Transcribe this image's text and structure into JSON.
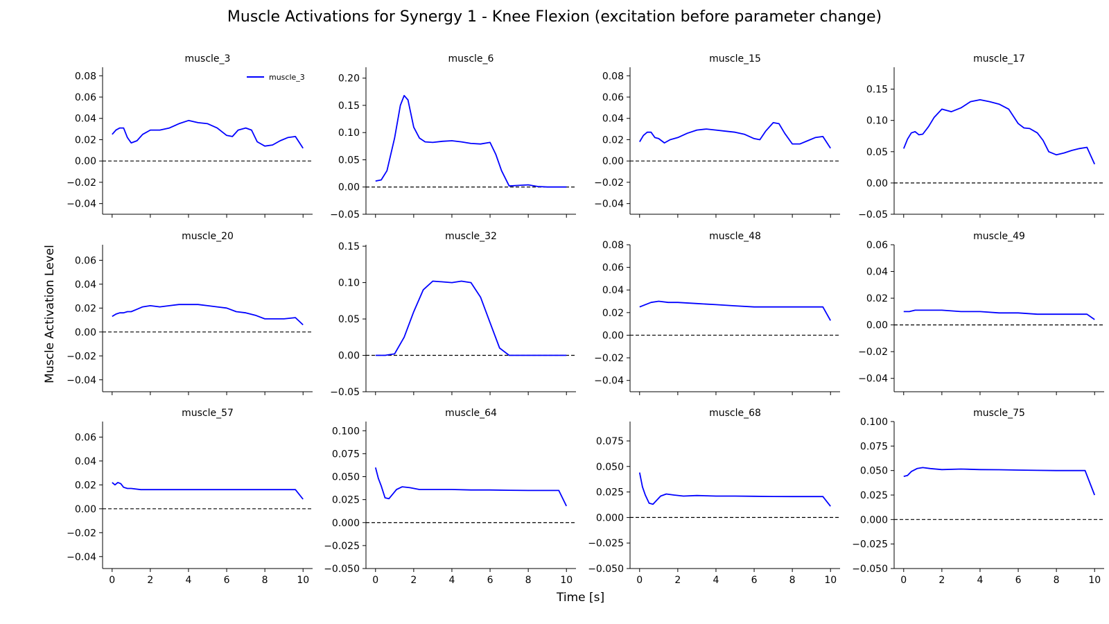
{
  "figure": {
    "title": "Muscle Activations for Synergy 1 - Knee Flexion (excitation before parameter change)",
    "xlabel": "Time [s]",
    "ylabel": "Muscle Activation Level"
  },
  "chart_data": [
    {
      "type": "line",
      "title": "muscle_3",
      "legend": "muscle_3",
      "xlim": [
        -0.5,
        10.5
      ],
      "ylim": [
        -0.05,
        0.088
      ],
      "yticks": [
        -0.04,
        -0.02,
        0.0,
        0.02,
        0.04,
        0.06,
        0.08
      ],
      "ytick_labels": [
        "−0.04",
        "−0.02",
        "0.00",
        "0.02",
        "0.04",
        "0.06",
        "0.08"
      ],
      "x": [
        0,
        0.2,
        0.4,
        0.6,
        0.8,
        1,
        1.3,
        1.6,
        2,
        2.5,
        3,
        3.5,
        4,
        4.5,
        5,
        5.5,
        6,
        6.3,
        6.6,
        7,
        7.3,
        7.6,
        8,
        8.4,
        8.8,
        9.2,
        9.6,
        10
      ],
      "y": [
        0.025,
        0.029,
        0.031,
        0.031,
        0.022,
        0.017,
        0.019,
        0.025,
        0.029,
        0.029,
        0.031,
        0.035,
        0.038,
        0.036,
        0.035,
        0.031,
        0.024,
        0.023,
        0.029,
        0.031,
        0.029,
        0.018,
        0.014,
        0.015,
        0.019,
        0.022,
        0.023,
        0.012
      ]
    },
    {
      "type": "line",
      "title": "muscle_6",
      "xlim": [
        -0.5,
        10.5
      ],
      "ylim": [
        -0.05,
        0.22
      ],
      "yticks": [
        -0.05,
        0.0,
        0.05,
        0.1,
        0.15,
        0.2
      ],
      "ytick_labels": [
        "−0.05",
        "0.00",
        "0.05",
        "0.10",
        "0.15",
        "0.20"
      ],
      "x": [
        0,
        0.3,
        0.6,
        1,
        1.3,
        1.5,
        1.7,
        2,
        2.3,
        2.6,
        3,
        3.5,
        4,
        4.5,
        5,
        5.5,
        6,
        6.3,
        6.6,
        7,
        7.5,
        8,
        8.5,
        9,
        10
      ],
      "y": [
        0.011,
        0.013,
        0.03,
        0.09,
        0.15,
        0.168,
        0.16,
        0.11,
        0.09,
        0.083,
        0.082,
        0.084,
        0.085,
        0.083,
        0.08,
        0.079,
        0.082,
        0.06,
        0.03,
        0.002,
        0.003,
        0.004,
        0.001,
        0.0,
        0.0
      ]
    },
    {
      "type": "line",
      "title": "muscle_15",
      "xlim": [
        -0.5,
        10.5
      ],
      "ylim": [
        -0.05,
        0.088
      ],
      "yticks": [
        -0.04,
        -0.02,
        0.0,
        0.02,
        0.04,
        0.06,
        0.08
      ],
      "ytick_labels": [
        "−0.04",
        "−0.02",
        "0.00",
        "0.02",
        "0.04",
        "0.06",
        "0.08"
      ],
      "x": [
        0,
        0.2,
        0.4,
        0.6,
        0.8,
        1,
        1.3,
        1.6,
        2,
        2.5,
        3,
        3.5,
        4,
        4.5,
        5,
        5.5,
        6,
        6.3,
        6.6,
        7,
        7.3,
        7.6,
        8,
        8.4,
        8.8,
        9.2,
        9.6,
        10
      ],
      "y": [
        0.018,
        0.024,
        0.027,
        0.027,
        0.022,
        0.021,
        0.017,
        0.02,
        0.022,
        0.026,
        0.029,
        0.03,
        0.029,
        0.028,
        0.027,
        0.025,
        0.021,
        0.02,
        0.028,
        0.036,
        0.035,
        0.026,
        0.016,
        0.016,
        0.019,
        0.022,
        0.023,
        0.012
      ]
    },
    {
      "type": "line",
      "title": "muscle_17",
      "xlim": [
        -0.5,
        10.5
      ],
      "ylim": [
        -0.05,
        0.185
      ],
      "yticks": [
        -0.05,
        0.0,
        0.05,
        0.1,
        0.15
      ],
      "ytick_labels": [
        "−0.05",
        "0.00",
        "0.05",
        "0.10",
        "0.15"
      ],
      "x": [
        0,
        0.2,
        0.4,
        0.6,
        0.8,
        1,
        1.3,
        1.6,
        2,
        2.5,
        3,
        3.5,
        4,
        4.5,
        5,
        5.5,
        6,
        6.3,
        6.6,
        7,
        7.3,
        7.6,
        8,
        8.4,
        8.8,
        9.2,
        9.6,
        10
      ],
      "y": [
        0.055,
        0.07,
        0.08,
        0.082,
        0.077,
        0.078,
        0.09,
        0.105,
        0.118,
        0.114,
        0.12,
        0.13,
        0.133,
        0.13,
        0.126,
        0.118,
        0.095,
        0.088,
        0.087,
        0.08,
        0.068,
        0.05,
        0.045,
        0.048,
        0.052,
        0.055,
        0.057,
        0.03
      ]
    },
    {
      "type": "line",
      "title": "muscle_20",
      "xlim": [
        -0.5,
        10.5
      ],
      "ylim": [
        -0.05,
        0.073
      ],
      "yticks": [
        -0.04,
        -0.02,
        0.0,
        0.02,
        0.04,
        0.06
      ],
      "ytick_labels": [
        "−0.04",
        "−0.02",
        "0.00",
        "0.02",
        "0.04",
        "0.06"
      ],
      "x": [
        0,
        0.2,
        0.4,
        0.6,
        0.8,
        1,
        1.3,
        1.6,
        2,
        2.5,
        3,
        3.5,
        4,
        4.5,
        5,
        5.5,
        6,
        6.5,
        7,
        7.5,
        8,
        8.5,
        9,
        9.6,
        10
      ],
      "y": [
        0.013,
        0.015,
        0.016,
        0.016,
        0.017,
        0.017,
        0.019,
        0.021,
        0.022,
        0.021,
        0.022,
        0.023,
        0.023,
        0.023,
        0.022,
        0.021,
        0.02,
        0.017,
        0.016,
        0.014,
        0.011,
        0.011,
        0.011,
        0.012,
        0.006
      ]
    },
    {
      "type": "line",
      "title": "muscle_32",
      "xlim": [
        -0.5,
        10.5
      ],
      "ylim": [
        -0.05,
        0.152
      ],
      "yticks": [
        -0.05,
        0.0,
        0.05,
        0.1,
        0.15
      ],
      "ytick_labels": [
        "−0.05",
        "0.00",
        "0.05",
        "0.10",
        "0.15"
      ],
      "x": [
        0,
        0.5,
        1,
        1.5,
        2,
        2.5,
        3,
        3.5,
        4,
        4.5,
        5,
        5.5,
        6,
        6.5,
        7,
        7.5,
        8,
        9,
        10
      ],
      "y": [
        0.0,
        0.0,
        0.002,
        0.025,
        0.06,
        0.09,
        0.102,
        0.101,
        0.1,
        0.102,
        0.1,
        0.08,
        0.045,
        0.01,
        0.0,
        0.0,
        0.0,
        0.0,
        0.0
      ]
    },
    {
      "type": "line",
      "title": "muscle_48",
      "xlim": [
        -0.5,
        10.5
      ],
      "ylim": [
        -0.05,
        0.08
      ],
      "yticks": [
        -0.04,
        -0.02,
        0.0,
        0.02,
        0.04,
        0.06,
        0.08
      ],
      "ytick_labels": [
        "−0.04",
        "−0.02",
        "0.00",
        "0.02",
        "0.04",
        "0.06",
        "0.08"
      ],
      "x": [
        0,
        0.3,
        0.6,
        1,
        1.5,
        2,
        3,
        4,
        5,
        6,
        7,
        8,
        9,
        9.6,
        10
      ],
      "y": [
        0.025,
        0.027,
        0.029,
        0.03,
        0.029,
        0.029,
        0.028,
        0.027,
        0.026,
        0.025,
        0.025,
        0.025,
        0.025,
        0.025,
        0.013
      ]
    },
    {
      "type": "line",
      "title": "muscle_49",
      "xlim": [
        -0.5,
        10.5
      ],
      "ylim": [
        -0.05,
        0.06
      ],
      "yticks": [
        -0.04,
        -0.02,
        0.0,
        0.02,
        0.04,
        0.06
      ],
      "ytick_labels": [
        "−0.04",
        "−0.02",
        "0.00",
        "0.02",
        "0.04",
        "0.06"
      ],
      "x": [
        0,
        0.3,
        0.6,
        1,
        1.5,
        2,
        3,
        4,
        5,
        6,
        7,
        8,
        9,
        9.6,
        10
      ],
      "y": [
        0.01,
        0.01,
        0.011,
        0.011,
        0.011,
        0.011,
        0.01,
        0.01,
        0.009,
        0.009,
        0.008,
        0.008,
        0.008,
        0.008,
        0.004
      ]
    },
    {
      "type": "line",
      "title": "muscle_57",
      "xlim": [
        -0.5,
        10.5
      ],
      "ylim": [
        -0.05,
        0.073
      ],
      "yticks": [
        -0.04,
        -0.02,
        0.0,
        0.02,
        0.04,
        0.06
      ],
      "ytick_labels": [
        "−0.04",
        "−0.02",
        "0.00",
        "0.02",
        "0.04",
        "0.06"
      ],
      "x": [
        0,
        0.15,
        0.3,
        0.45,
        0.6,
        0.8,
        1,
        1.5,
        2,
        3,
        4,
        5,
        6,
        7,
        8,
        9,
        9.6,
        10
      ],
      "y": [
        0.022,
        0.02,
        0.022,
        0.021,
        0.018,
        0.017,
        0.017,
        0.016,
        0.016,
        0.016,
        0.016,
        0.016,
        0.016,
        0.016,
        0.016,
        0.016,
        0.016,
        0.008
      ]
    },
    {
      "type": "line",
      "title": "muscle_64",
      "xlim": [
        -0.5,
        10.5
      ],
      "ylim": [
        -0.05,
        0.11
      ],
      "yticks": [
        -0.05,
        -0.025,
        0.0,
        0.025,
        0.05,
        0.075,
        0.1
      ],
      "ytick_labels": [
        "−0.050",
        "−0.025",
        "0.000",
        "0.025",
        "0.050",
        "0.075",
        "0.100"
      ],
      "x": [
        0,
        0.15,
        0.3,
        0.5,
        0.7,
        0.9,
        1.1,
        1.4,
        1.8,
        2.3,
        3,
        4,
        5,
        6,
        7,
        8,
        9,
        9.6,
        10
      ],
      "y": [
        0.06,
        0.048,
        0.04,
        0.027,
        0.026,
        0.031,
        0.036,
        0.039,
        0.038,
        0.036,
        0.036,
        0.036,
        0.0355,
        0.0355,
        0.0352,
        0.035,
        0.035,
        0.035,
        0.018
      ]
    },
    {
      "type": "line",
      "title": "muscle_68",
      "xlim": [
        -0.5,
        10.5
      ],
      "ylim": [
        -0.05,
        0.094
      ],
      "yticks": [
        -0.05,
        -0.025,
        0.0,
        0.025,
        0.05,
        0.075
      ],
      "ytick_labels": [
        "−0.050",
        "−0.025",
        "0.000",
        "0.025",
        "0.050",
        "0.075"
      ],
      "x": [
        0,
        0.15,
        0.3,
        0.5,
        0.7,
        0.9,
        1.1,
        1.4,
        1.8,
        2.3,
        3,
        4,
        5,
        6,
        7,
        8,
        9,
        9.6,
        10
      ],
      "y": [
        0.044,
        0.03,
        0.022,
        0.014,
        0.013,
        0.017,
        0.021,
        0.023,
        0.022,
        0.021,
        0.0215,
        0.021,
        0.021,
        0.0208,
        0.0206,
        0.0205,
        0.0205,
        0.0205,
        0.011
      ]
    },
    {
      "type": "line",
      "title": "muscle_75",
      "xlim": [
        -0.5,
        10.5
      ],
      "ylim": [
        -0.05,
        0.1
      ],
      "yticks": [
        -0.05,
        -0.025,
        0.0,
        0.025,
        0.05,
        0.075,
        0.1
      ],
      "ytick_labels": [
        "−0.050",
        "−0.025",
        "0.000",
        "0.025",
        "0.050",
        "0.075",
        "0.100"
      ],
      "x": [
        0,
        0.2,
        0.4,
        0.7,
        1,
        1.4,
        2,
        3,
        4,
        5,
        6,
        7,
        8,
        9,
        9.5,
        10
      ],
      "y": [
        0.044,
        0.045,
        0.049,
        0.052,
        0.053,
        0.052,
        0.051,
        0.0515,
        0.051,
        0.0508,
        0.0505,
        0.0502,
        0.05,
        0.05,
        0.05,
        0.025
      ]
    }
  ],
  "x_ticks": [
    0,
    2,
    4,
    6,
    8,
    10
  ],
  "x_tick_labels": [
    "0",
    "2",
    "4",
    "6",
    "8",
    "10"
  ],
  "colors": {
    "series": "#0000ff",
    "axis": "#000000",
    "zero_line": "#000000"
  }
}
